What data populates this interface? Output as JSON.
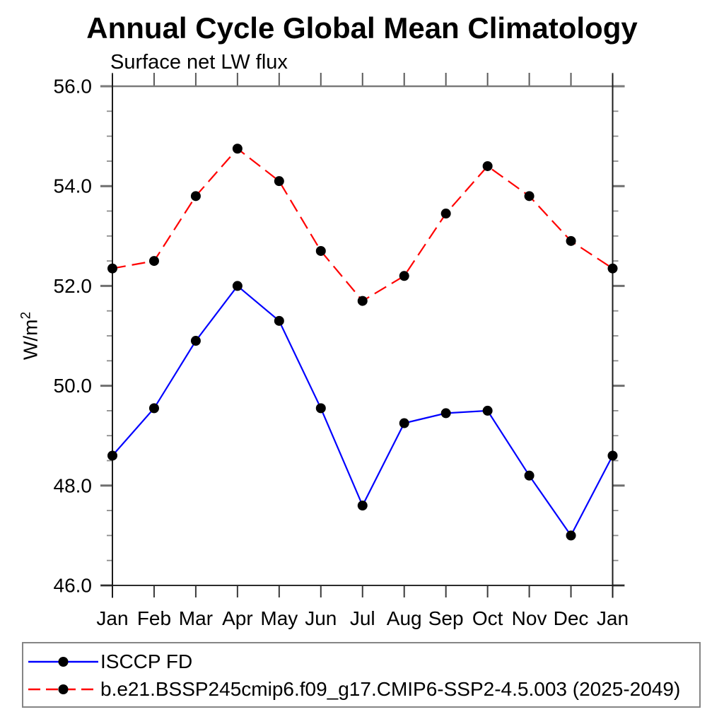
{
  "header": {
    "title": "Annual Cycle Global Mean Climatology",
    "subtitle": "Surface net LW flux"
  },
  "ylabel": {
    "base": "W/m",
    "exponent": "2"
  },
  "legend": {
    "items": [
      {
        "label": "ISCCP FD",
        "color": "#0000ff",
        "style": "solid",
        "marker": "black-dot"
      },
      {
        "label": "b.e21.BSSP245cmip6.f09_g17.CMIP6-SSP2-4.5.003 (2025-2049)",
        "color": "#ff0000",
        "style": "dashed",
        "marker": "black-dot"
      }
    ]
  },
  "chart_data": {
    "type": "line",
    "title": "Annual Cycle Global Mean Climatology",
    "subtitle": "Surface net LW flux",
    "xlabel": "",
    "ylabel": "W/m^2",
    "categories": [
      "Jan",
      "Feb",
      "Mar",
      "Apr",
      "May",
      "Jun",
      "Jul",
      "Aug",
      "Sep",
      "Oct",
      "Nov",
      "Dec",
      "Jan"
    ],
    "ylim": [
      46.0,
      56.0
    ],
    "ytick_major": 2.0,
    "ytick_minor": 0.5,
    "ytick_labels": [
      "46.0",
      "48.0",
      "50.0",
      "52.0",
      "54.0",
      "56.0"
    ],
    "grid": false,
    "legend_position": "bottom-left-box",
    "marker": "filled-circle-black",
    "series": [
      {
        "name": "ISCCP FD",
        "color": "#0000ff",
        "line_style": "solid",
        "values": [
          48.6,
          49.55,
          50.9,
          52.0,
          51.3,
          49.55,
          47.6,
          49.25,
          49.45,
          49.5,
          48.2,
          47.0,
          48.6
        ]
      },
      {
        "name": "b.e21.BSSP245cmip6.f09_g17.CMIP6-SSP2-4.5.003 (2025-2049)",
        "color": "#ff0000",
        "line_style": "dashed",
        "values": [
          52.35,
          52.5,
          53.8,
          54.75,
          54.1,
          52.7,
          51.7,
          52.2,
          53.45,
          54.4,
          53.8,
          52.9,
          52.35
        ]
      }
    ]
  }
}
